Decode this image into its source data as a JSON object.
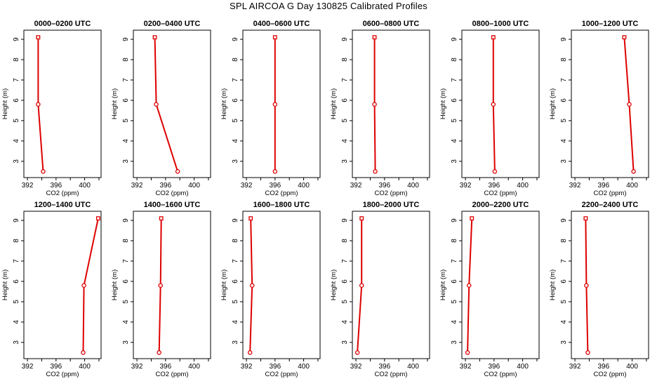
{
  "title": "SPL AIRCOA G  Day 130825  Calibrated Profiles",
  "colors": {
    "series": "#dd0000",
    "axes": "#000000"
  },
  "chart_data": [
    {
      "type": "line",
      "title": "0000–0200 UTC",
      "xlabel": "CO2 (ppm)",
      "ylabel": "Height (m)",
      "xlim": [
        391.5,
        402.3
      ],
      "ylim": [
        2.2,
        9.45
      ],
      "xticks": [
        "392",
        "396",
        "400"
      ],
      "yticks": [
        "3",
        "4",
        "5",
        "6",
        "7",
        "8",
        "9"
      ],
      "x": [
        393.5,
        393.5,
        394.2
      ],
      "y": [
        9.1,
        5.8,
        2.5
      ]
    },
    {
      "type": "line",
      "title": "0200–0400 UTC",
      "xlabel": "CO2 (ppm)",
      "ylabel": "Height (m)",
      "xlim": [
        391.5,
        402.3
      ],
      "ylim": [
        2.2,
        9.45
      ],
      "xticks": [
        "392",
        "396",
        "400"
      ],
      "yticks": [
        "3",
        "4",
        "5",
        "6",
        "7",
        "8",
        "9"
      ],
      "x": [
        394.5,
        394.7,
        397.7
      ],
      "y": [
        9.1,
        5.8,
        2.5
      ]
    },
    {
      "type": "line",
      "title": "0400–0600 UTC",
      "xlabel": "CO2 (ppm)",
      "ylabel": "Height (m)",
      "xlim": [
        391.5,
        402.3
      ],
      "ylim": [
        2.2,
        9.45
      ],
      "xticks": [
        "392",
        "396",
        "400"
      ],
      "yticks": [
        "3",
        "4",
        "5",
        "6",
        "7",
        "8",
        "9"
      ],
      "x": [
        396.0,
        396.0,
        396.0
      ],
      "y": [
        9.1,
        5.8,
        2.5
      ]
    },
    {
      "type": "line",
      "title": "0600–0800 UTC",
      "xlabel": "CO2 (ppm)",
      "ylabel": "Height (m)",
      "xlim": [
        391.5,
        402.3
      ],
      "ylim": [
        2.2,
        9.45
      ],
      "xticks": [
        "392",
        "396",
        "400"
      ],
      "yticks": [
        "3",
        "4",
        "5",
        "6",
        "7",
        "8",
        "9"
      ],
      "x": [
        394.6,
        394.6,
        394.7
      ],
      "y": [
        9.1,
        5.8,
        2.5
      ]
    },
    {
      "type": "line",
      "title": "0800–1000 UTC",
      "xlabel": "CO2 (ppm)",
      "ylabel": "Height (m)",
      "xlim": [
        391.5,
        402.3
      ],
      "ylim": [
        2.2,
        9.45
      ],
      "xticks": [
        "392",
        "396",
        "400"
      ],
      "yticks": [
        "3",
        "4",
        "5",
        "6",
        "7",
        "8",
        "9"
      ],
      "x": [
        395.9,
        395.9,
        396.1
      ],
      "y": [
        9.1,
        5.8,
        2.5
      ]
    },
    {
      "type": "line",
      "title": "1000–1200 UTC",
      "xlabel": "CO2 (ppm)",
      "ylabel": "Height (m)",
      "xlim": [
        391.5,
        402.3
      ],
      "ylim": [
        2.2,
        9.45
      ],
      "xticks": [
        "392",
        "396",
        "400"
      ],
      "yticks": [
        "3",
        "4",
        "5",
        "6",
        "7",
        "8",
        "9"
      ],
      "x": [
        398.9,
        399.6,
        400.2
      ],
      "y": [
        9.1,
        5.8,
        2.5
      ]
    },
    {
      "type": "line",
      "title": "1200–1400 UTC",
      "xlabel": "CO2 (ppm)",
      "ylabel": "Height (m)",
      "xlim": [
        391.5,
        402.3
      ],
      "ylim": [
        2.2,
        9.45
      ],
      "xticks": [
        "392",
        "396",
        "400"
      ],
      "yticks": [
        "3",
        "4",
        "5",
        "6",
        "7",
        "8",
        "9"
      ],
      "x": [
        401.9,
        399.9,
        399.8
      ],
      "y": [
        9.1,
        5.8,
        2.5
      ]
    },
    {
      "type": "line",
      "title": "1400–1600 UTC",
      "xlabel": "CO2 (ppm)",
      "ylabel": "Height (m)",
      "xlim": [
        391.5,
        402.3
      ],
      "ylim": [
        2.2,
        9.45
      ],
      "xticks": [
        "392",
        "396",
        "400"
      ],
      "yticks": [
        "3",
        "4",
        "5",
        "6",
        "7",
        "8",
        "9"
      ],
      "x": [
        395.4,
        395.3,
        395.1
      ],
      "y": [
        9.1,
        5.8,
        2.5
      ]
    },
    {
      "type": "line",
      "title": "1600–1800 UTC",
      "xlabel": "CO2 (ppm)",
      "ylabel": "Height (m)",
      "xlim": [
        391.5,
        402.3
      ],
      "ylim": [
        2.2,
        9.45
      ],
      "xticks": [
        "392",
        "396",
        "400"
      ],
      "yticks": [
        "3",
        "4",
        "5",
        "6",
        "7",
        "8",
        "9"
      ],
      "x": [
        392.6,
        392.8,
        392.5
      ],
      "y": [
        9.1,
        5.8,
        2.5
      ]
    },
    {
      "type": "line",
      "title": "1800–2000 UTC",
      "xlabel": "CO2 (ppm)",
      "ylabel": "Height (m)",
      "xlim": [
        391.5,
        402.3
      ],
      "ylim": [
        2.2,
        9.45
      ],
      "xticks": [
        "392",
        "396",
        "400"
      ],
      "yticks": [
        "3",
        "4",
        "5",
        "6",
        "7",
        "8",
        "9"
      ],
      "x": [
        392.8,
        392.8,
        392.2
      ],
      "y": [
        9.1,
        5.8,
        2.5
      ]
    },
    {
      "type": "line",
      "title": "2000–2200 UTC",
      "xlabel": "CO2 (ppm)",
      "ylabel": "Height (m)",
      "xlim": [
        391.5,
        402.3
      ],
      "ylim": [
        2.2,
        9.45
      ],
      "xticks": [
        "392",
        "396",
        "400"
      ],
      "yticks": [
        "3",
        "4",
        "5",
        "6",
        "7",
        "8",
        "9"
      ],
      "x": [
        392.9,
        392.5,
        392.3
      ],
      "y": [
        9.1,
        5.8,
        2.5
      ]
    },
    {
      "type": "line",
      "title": "2200–2400 UTC",
      "xlabel": "CO2 (ppm)",
      "ylabel": "Height (m)",
      "xlim": [
        391.5,
        402.3
      ],
      "ylim": [
        2.2,
        9.45
      ],
      "xticks": [
        "392",
        "396",
        "400"
      ],
      "yticks": [
        "3",
        "4",
        "5",
        "6",
        "7",
        "8",
        "9"
      ],
      "x": [
        393.5,
        393.6,
        393.8
      ],
      "y": [
        9.1,
        5.8,
        2.5
      ]
    }
  ]
}
